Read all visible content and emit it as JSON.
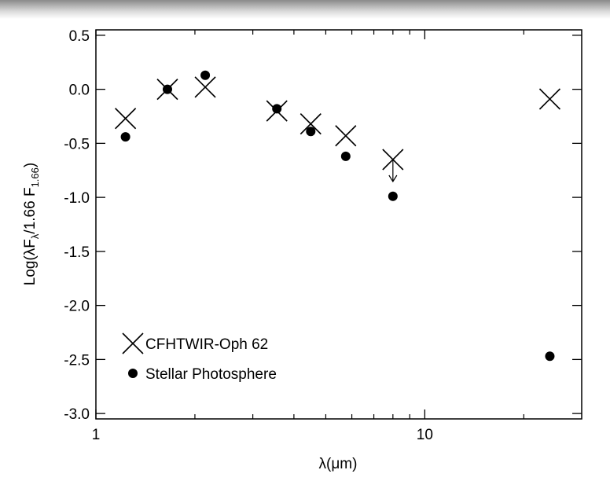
{
  "chart_data": {
    "type": "scatter",
    "x_label": "λ(μm)",
    "y_label": [
      "Log(λF",
      "λ",
      "/1.66 F",
      "1.66",
      ")"
    ],
    "xlog": true,
    "xlim": [
      1,
      30
    ],
    "xticks": [
      1,
      10
    ],
    "xminorticks": [
      2,
      3,
      4,
      5,
      6,
      7,
      8,
      9,
      20
    ],
    "ylim": [
      -3.05,
      0.55
    ],
    "yticks": [
      0.5,
      {
        "value": 0,
        "label": "0.0"
      },
      -0.5,
      {
        "value": -1,
        "label": "-1.0"
      },
      -1.5,
      {
        "value": -2,
        "label": "-2.0"
      },
      -2.5,
      {
        "value": -3,
        "label": "-3.0"
      }
    ],
    "legend": "lower left",
    "series": [
      {
        "name": "CFHTWIR-Oph 62",
        "marker": "x",
        "color": "#000000",
        "x": [
          1.23,
          1.65,
          2.15,
          3.55,
          4.5,
          5.75,
          8.0,
          24
        ],
        "values": [
          -0.27,
          0.0,
          0.02,
          -0.2,
          -0.32,
          -0.43,
          -0.65,
          -0.09
        ],
        "upper_limits": [
          false,
          false,
          false,
          false,
          false,
          false,
          true,
          false
        ]
      },
      {
        "name": "Stellar Photosphere",
        "marker": "o",
        "color": "#000000",
        "x": [
          1.23,
          1.65,
          2.15,
          3.55,
          4.5,
          5.75,
          8.0,
          24
        ],
        "values": [
          -0.44,
          0.0,
          0.13,
          -0.18,
          -0.39,
          -0.62,
          -0.99,
          -2.47
        ]
      }
    ]
  }
}
